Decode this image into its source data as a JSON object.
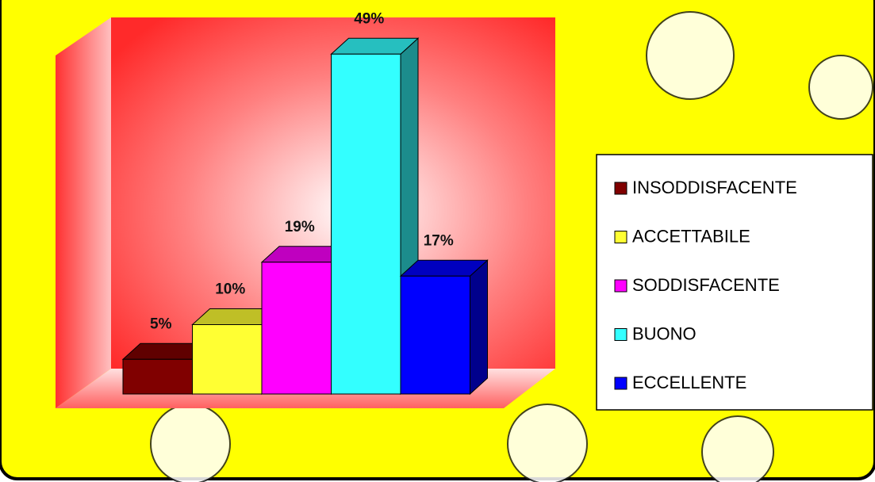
{
  "chart_data": {
    "type": "bar",
    "categories": [
      "INSODDISFACENTE",
      "ACCETTABILE",
      "SODDISFACENTE",
      "BUONO",
      "ECCELLENTE"
    ],
    "values": [
      5,
      10,
      19,
      49,
      17
    ],
    "value_labels": [
      "5%",
      "10%",
      "19%",
      "49%",
      "17%"
    ],
    "colors": [
      "#800000",
      "#ffff33",
      "#ff00ff",
      "#33ffff",
      "#0000ff"
    ],
    "legend": "right"
  }
}
